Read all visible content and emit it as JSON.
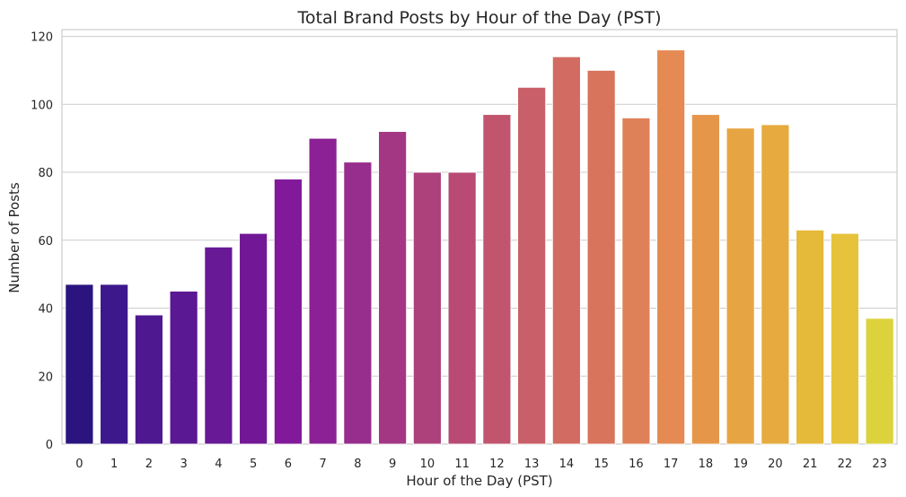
{
  "chart_data": {
    "type": "bar",
    "title": "Total Brand Posts by Hour of the Day (PST)",
    "xlabel": "Hour of the Day (PST)",
    "ylabel": "Number of Posts",
    "ylim": [
      0,
      122
    ],
    "yticks": [
      0,
      20,
      40,
      60,
      80,
      100,
      120
    ],
    "grid": "horizontal",
    "palette": "plasma",
    "categories": [
      "0",
      "1",
      "2",
      "3",
      "4",
      "5",
      "6",
      "7",
      "8",
      "9",
      "10",
      "11",
      "12",
      "13",
      "14",
      "15",
      "16",
      "17",
      "18",
      "19",
      "20",
      "21",
      "22",
      "23"
    ],
    "values": [
      47,
      47,
      38,
      45,
      58,
      62,
      78,
      90,
      83,
      92,
      80,
      80,
      97,
      105,
      114,
      110,
      96,
      116,
      97,
      93,
      94,
      63,
      62,
      37
    ],
    "colors": [
      "#2b1480",
      "#3d178c",
      "#4e1891",
      "#5b1893",
      "#681996",
      "#721897",
      "#81199a",
      "#8b2194",
      "#972d8d",
      "#a33784",
      "#ad417b",
      "#b84a74",
      "#c1556d",
      "#c95f68",
      "#d26b62",
      "#d8735c",
      "#df8158",
      "#e58a52",
      "#e69649",
      "#e6a542",
      "#e6aa3e",
      "#e5b93a",
      "#e6c33a",
      "#dcd23c"
    ]
  }
}
